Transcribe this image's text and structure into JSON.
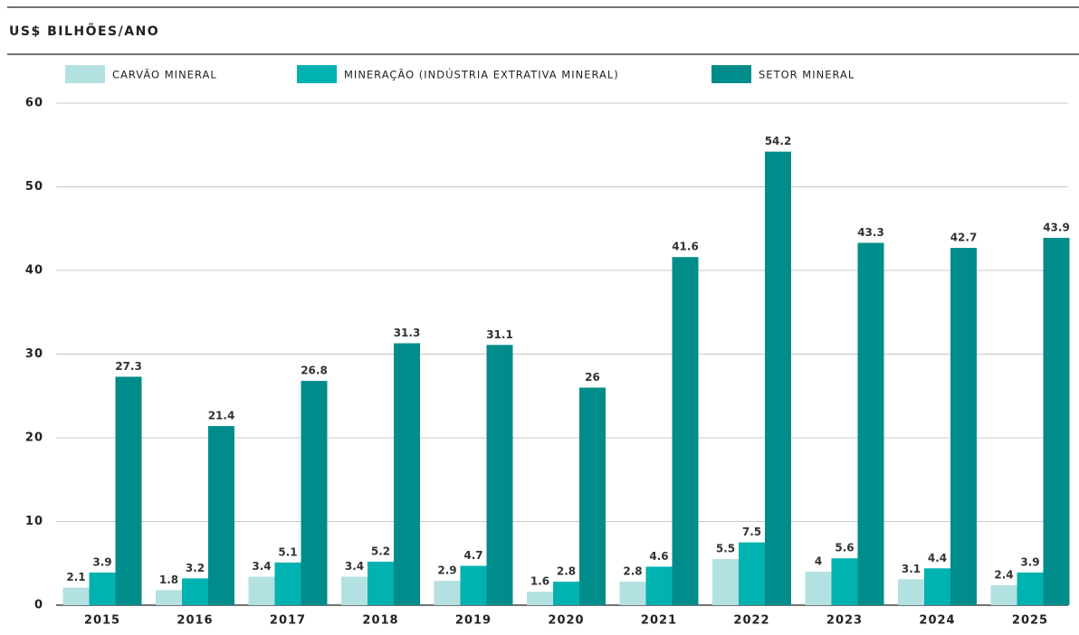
{
  "chart_data": {
    "type": "bar",
    "title": "US$ BILHÕES/ANO",
    "categories": [
      "2015",
      "2016",
      "2017",
      "2018",
      "2019",
      "2020",
      "2021",
      "2022",
      "2023",
      "2024",
      "2025"
    ],
    "series": [
      {
        "name": "CARVÃO MINERAL",
        "color": "#b3e1e1",
        "values": [
          2.1,
          1.8,
          3.4,
          3.4,
          2.9,
          1.6,
          2.8,
          5.5,
          4,
          3.1,
          2.4
        ]
      },
      {
        "name": "MINERAÇÃO (INDÚSTRIA EXTRATIVA MINERAL)",
        "color": "#00b2b0",
        "values": [
          3.9,
          3.2,
          5.1,
          5.2,
          4.7,
          2.8,
          4.6,
          7.5,
          5.6,
          4.4,
          3.9
        ]
      },
      {
        "name": "SETOR MINERAL",
        "color": "#008c8a",
        "values": [
          27.3,
          21.4,
          26.8,
          31.3,
          31.1,
          26,
          41.6,
          54.2,
          43.3,
          42.7,
          43.9
        ]
      }
    ],
    "ylim": [
      0,
      60
    ],
    "yticks": [
      0,
      10,
      20,
      30,
      40,
      50,
      60
    ],
    "grid": true,
    "legend": "top"
  }
}
